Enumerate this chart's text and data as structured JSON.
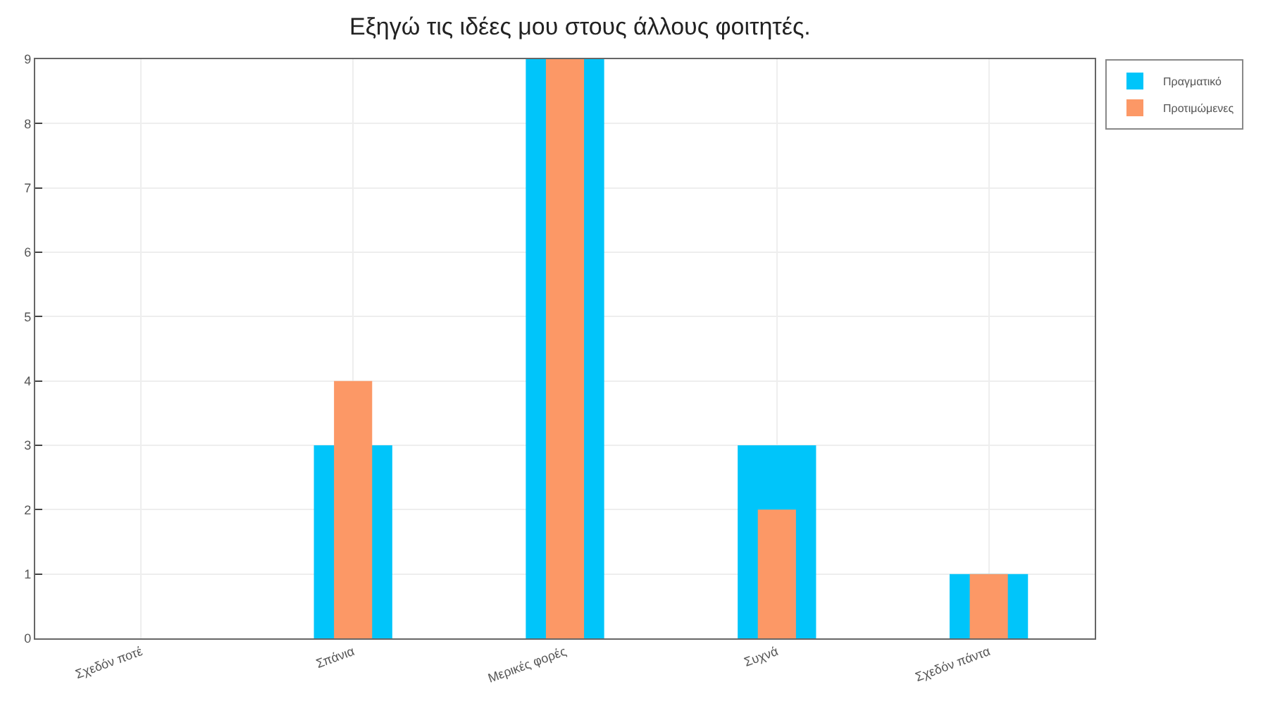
{
  "chart_data": {
    "type": "bar",
    "title": "Εξηγώ τις ιδέες μου στους άλλους φοιτητές.",
    "categories": [
      "Σχεδόν ποτέ",
      "Σπάνια",
      "Μερικές φορές",
      "Συχνά",
      "Σχεδόν πάντα"
    ],
    "series": [
      {
        "name": "Πραγματικό",
        "color": "#00c5fa",
        "values": [
          0,
          3,
          9,
          3,
          1
        ]
      },
      {
        "name": "Προτιμώμενες",
        "color": "#fc9866",
        "values": [
          0,
          4,
          9,
          2,
          1
        ]
      }
    ],
    "ylim": [
      0,
      9
    ],
    "yticks": [
      0,
      1,
      2,
      3,
      4,
      5,
      6,
      7,
      8,
      9
    ],
    "grid": true,
    "legend": "top right"
  }
}
